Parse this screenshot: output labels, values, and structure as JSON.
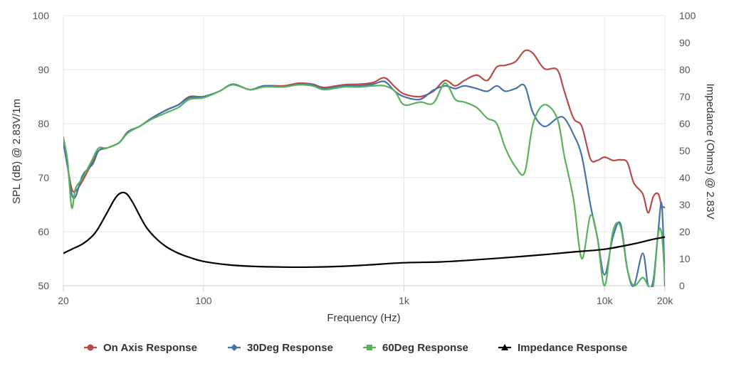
{
  "chart_data": {
    "type": "line",
    "xlabel": "Frequency (Hz)",
    "ylabel": "SPL (dB) @ 2.83V/1m",
    "y2label": "Impedance (Ohms) @ 2.83V",
    "x_scale": "log",
    "xlim": [
      20,
      20000
    ],
    "ylim": [
      50,
      100
    ],
    "y2lim": [
      0,
      100
    ],
    "grid": true,
    "legend_position": "bottom-center",
    "x_ticks": [
      20,
      100,
      1000,
      10000,
      20000
    ],
    "x_tick_labels": [
      "20",
      "100",
      "1k",
      "10k",
      "20k"
    ],
    "y_ticks": [
      50,
      60,
      70,
      80,
      90,
      100
    ],
    "y2_ticks": [
      0,
      10,
      20,
      30,
      40,
      50,
      60,
      70,
      80,
      90,
      100
    ],
    "series": [
      {
        "name": "On Axis Response",
        "axis": "left",
        "color": "#b94a48",
        "marker": "circle",
        "points": [
          [
            20,
            76.5
          ],
          [
            21,
            72
          ],
          [
            22,
            68
          ],
          [
            23,
            67.5
          ],
          [
            25,
            69.5
          ],
          [
            28,
            73
          ],
          [
            30,
            75
          ],
          [
            33,
            75.5
          ],
          [
            38,
            76.5
          ],
          [
            42,
            78.5
          ],
          [
            48,
            79.5
          ],
          [
            55,
            81
          ],
          [
            65,
            82.5
          ],
          [
            75,
            83.5
          ],
          [
            85,
            85
          ],
          [
            100,
            85
          ],
          [
            120,
            86
          ],
          [
            140,
            87.3
          ],
          [
            170,
            86.3
          ],
          [
            200,
            87
          ],
          [
            250,
            87
          ],
          [
            300,
            87.5
          ],
          [
            350,
            87.3
          ],
          [
            400,
            86.7
          ],
          [
            500,
            87.2
          ],
          [
            600,
            87.3
          ],
          [
            700,
            87.6
          ],
          [
            800,
            88.5
          ],
          [
            900,
            86.8
          ],
          [
            1000,
            85.5
          ],
          [
            1200,
            85
          ],
          [
            1400,
            86
          ],
          [
            1600,
            88
          ],
          [
            1800,
            87
          ],
          [
            2000,
            88
          ],
          [
            2300,
            89
          ],
          [
            2600,
            88
          ],
          [
            2900,
            90.5
          ],
          [
            3200,
            90.8
          ],
          [
            3600,
            91.5
          ],
          [
            4000,
            93.5
          ],
          [
            4400,
            93
          ],
          [
            5000,
            90.2
          ],
          [
            5800,
            90
          ],
          [
            6300,
            86
          ],
          [
            7000,
            81
          ],
          [
            7700,
            79.5
          ],
          [
            8500,
            73.5
          ],
          [
            9200,
            73.2
          ],
          [
            10000,
            73.8
          ],
          [
            11000,
            73.2
          ],
          [
            12000,
            73.3
          ],
          [
            13000,
            72.8
          ],
          [
            14000,
            69
          ],
          [
            15500,
            67
          ],
          [
            16500,
            63.5
          ],
          [
            17500,
            66.5
          ],
          [
            18500,
            67
          ],
          [
            19300,
            64.8
          ],
          [
            20000,
            64.5
          ]
        ]
      },
      {
        "name": "30Deg Response",
        "axis": "left",
        "color": "#4572a7",
        "marker": "diamond",
        "points": [
          [
            20,
            76.5
          ],
          [
            21,
            72
          ],
          [
            22,
            67
          ],
          [
            23,
            66.5
          ],
          [
            25,
            70.5
          ],
          [
            28,
            72.5
          ],
          [
            30,
            75
          ],
          [
            33,
            75.5
          ],
          [
            38,
            76.5
          ],
          [
            42,
            78.5
          ],
          [
            48,
            79.5
          ],
          [
            55,
            81
          ],
          [
            65,
            82.5
          ],
          [
            75,
            83.5
          ],
          [
            85,
            84.8
          ],
          [
            100,
            85
          ],
          [
            120,
            86
          ],
          [
            140,
            87.3
          ],
          [
            170,
            86.3
          ],
          [
            200,
            87
          ],
          [
            250,
            86.8
          ],
          [
            300,
            87.3
          ],
          [
            350,
            87.2
          ],
          [
            400,
            86.5
          ],
          [
            500,
            87
          ],
          [
            600,
            87
          ],
          [
            700,
            87.3
          ],
          [
            800,
            87.8
          ],
          [
            900,
            86
          ],
          [
            1000,
            85
          ],
          [
            1200,
            84.5
          ],
          [
            1400,
            86.2
          ],
          [
            1600,
            87
          ],
          [
            1800,
            86.5
          ],
          [
            2000,
            87
          ],
          [
            2300,
            86.5
          ],
          [
            2600,
            86
          ],
          [
            2900,
            87
          ],
          [
            3200,
            86
          ],
          [
            3600,
            86.5
          ],
          [
            4000,
            87
          ],
          [
            4400,
            82
          ],
          [
            5000,
            79.5
          ],
          [
            5800,
            81
          ],
          [
            6300,
            81
          ],
          [
            7000,
            78
          ],
          [
            7700,
            74
          ],
          [
            8500,
            65
          ],
          [
            9200,
            59
          ],
          [
            10000,
            52
          ],
          [
            11000,
            59
          ],
          [
            12000,
            61.5
          ],
          [
            13000,
            53
          ],
          [
            14000,
            50
          ],
          [
            15500,
            56
          ],
          [
            16500,
            50
          ],
          [
            17500,
            51
          ],
          [
            18500,
            60
          ],
          [
            19300,
            65
          ],
          [
            20000,
            50
          ]
        ]
      },
      {
        "name": "60Deg Response",
        "axis": "left",
        "color": "#59b25b",
        "marker": "square",
        "points": [
          [
            20,
            77.5
          ],
          [
            21,
            73
          ],
          [
            22,
            64.5
          ],
          [
            23,
            68
          ],
          [
            25,
            70
          ],
          [
            28,
            73.5
          ],
          [
            30,
            75.5
          ],
          [
            33,
            75.5
          ],
          [
            38,
            76.5
          ],
          [
            42,
            78.3
          ],
          [
            48,
            79.5
          ],
          [
            55,
            80.8
          ],
          [
            65,
            82
          ],
          [
            75,
            83
          ],
          [
            85,
            84.5
          ],
          [
            100,
            84.8
          ],
          [
            120,
            86
          ],
          [
            140,
            87.2
          ],
          [
            170,
            86.3
          ],
          [
            200,
            86.8
          ],
          [
            250,
            86.8
          ],
          [
            300,
            87.2
          ],
          [
            350,
            87
          ],
          [
            400,
            86.3
          ],
          [
            500,
            86.8
          ],
          [
            600,
            86.8
          ],
          [
            700,
            87
          ],
          [
            800,
            87
          ],
          [
            900,
            86
          ],
          [
            1000,
            83.5
          ],
          [
            1200,
            84
          ],
          [
            1400,
            83.8
          ],
          [
            1600,
            87.5
          ],
          [
            1800,
            84.5
          ],
          [
            2000,
            84
          ],
          [
            2300,
            83
          ],
          [
            2600,
            81
          ],
          [
            2900,
            80
          ],
          [
            3200,
            75.5
          ],
          [
            3600,
            72
          ],
          [
            4000,
            71
          ],
          [
            4400,
            80
          ],
          [
            5000,
            83.5
          ],
          [
            5800,
            81
          ],
          [
            6300,
            74
          ],
          [
            7000,
            66
          ],
          [
            7700,
            55
          ],
          [
            8500,
            63
          ],
          [
            9200,
            59
          ],
          [
            10000,
            50
          ],
          [
            11000,
            60
          ],
          [
            12000,
            61
          ],
          [
            13000,
            53
          ],
          [
            14000,
            50
          ],
          [
            15500,
            51.5
          ],
          [
            16500,
            50
          ],
          [
            17500,
            50
          ],
          [
            18500,
            59.5
          ],
          [
            19300,
            59.5
          ],
          [
            20000,
            51
          ]
        ]
      },
      {
        "name": "Impedance Response",
        "axis": "right",
        "color": "#000000",
        "marker": "triangle",
        "points": [
          [
            20,
            12
          ],
          [
            22,
            13.5
          ],
          [
            25,
            15.5
          ],
          [
            28,
            18.5
          ],
          [
            30,
            21.5
          ],
          [
            33,
            27
          ],
          [
            36,
            32
          ],
          [
            38,
            34
          ],
          [
            40,
            34.5
          ],
          [
            42,
            33.5
          ],
          [
            45,
            30
          ],
          [
            48,
            26
          ],
          [
            52,
            21.5
          ],
          [
            58,
            17.5
          ],
          [
            65,
            14.5
          ],
          [
            75,
            12
          ],
          [
            85,
            10.5
          ],
          [
            100,
            9
          ],
          [
            130,
            7.8
          ],
          [
            170,
            7.2
          ],
          [
            250,
            6.9
          ],
          [
            350,
            6.9
          ],
          [
            500,
            7.2
          ],
          [
            700,
            7.8
          ],
          [
            1000,
            8.5
          ],
          [
            1500,
            8.8
          ],
          [
            2000,
            9.3
          ],
          [
            3000,
            10.2
          ],
          [
            5000,
            11.5
          ],
          [
            7000,
            12.5
          ],
          [
            10000,
            13.5
          ],
          [
            14000,
            15.5
          ],
          [
            17000,
            17
          ],
          [
            20000,
            18
          ]
        ]
      }
    ]
  }
}
